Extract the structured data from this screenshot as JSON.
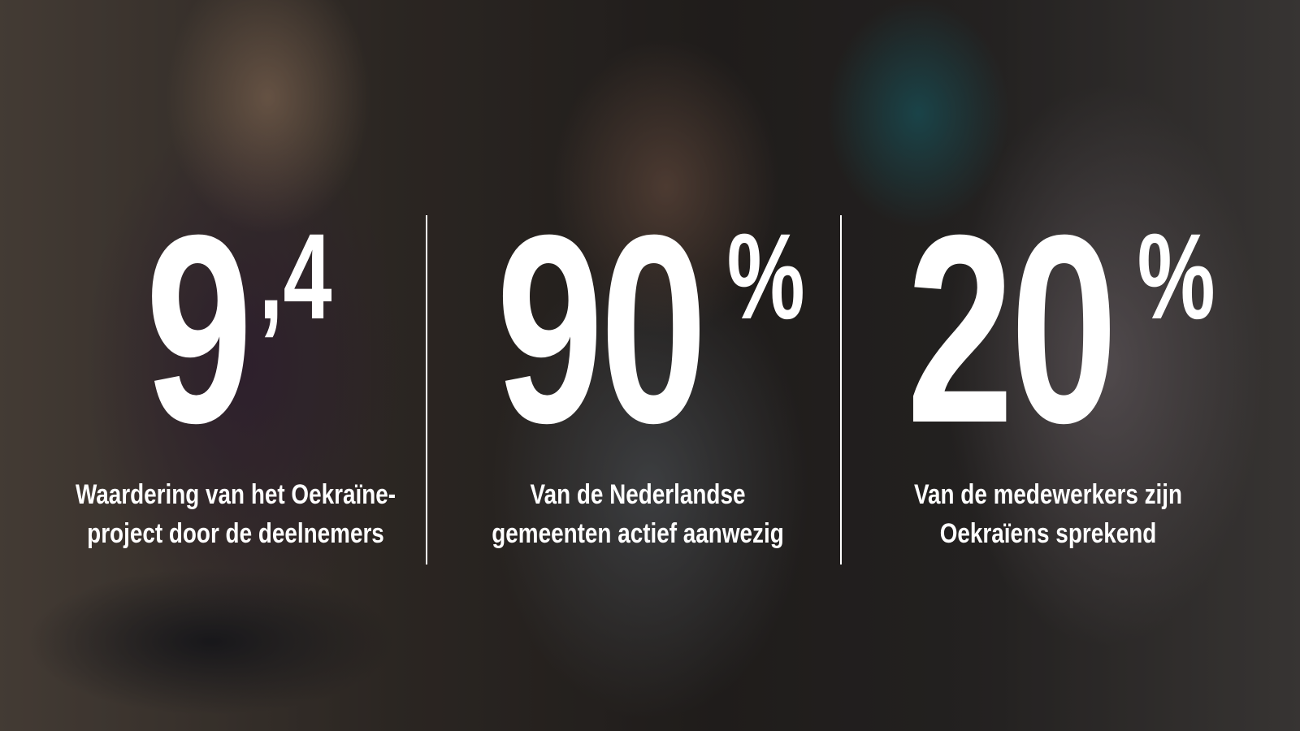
{
  "stats": [
    {
      "value": "9",
      "suffix": ",4",
      "caption_lines": [
        "Waardering van het Oekraïne-",
        "project door de deelnemers"
      ]
    },
    {
      "value": "90",
      "suffix": "%",
      "caption_lines": [
        "Van de Nederlandse",
        "gemeenten actief aanwezig"
      ]
    },
    {
      "value": "20",
      "suffix": "%",
      "caption_lines": [
        "Van de medewerkers zijn",
        "Oekraïens sprekend"
      ]
    }
  ]
}
